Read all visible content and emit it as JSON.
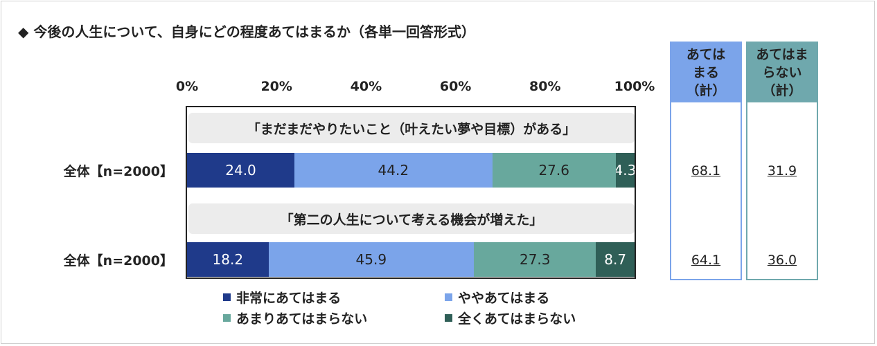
{
  "title": "◆ 今後の人生について、自身にどの程度あてはまるか（各単一回答形式）",
  "colors": {
    "very_applies": "#1f3a8a",
    "somewhat_applies": "#7ba4ea",
    "not_really": "#68a89d",
    "not_at_all": "#2f5f57",
    "applies_total_border": "#7ba4ea",
    "applies_total_header": "#7ba4ea",
    "not_applies_total_border": "#6fa8ad",
    "not_applies_total_header": "#6fa8ad"
  },
  "summary_headers": {
    "applies_total": "あては\nまる\n（計）",
    "not_applies_total": "あてはま\nらない\n（計）"
  },
  "chart_data": {
    "type": "bar",
    "orientation": "horizontal-stacked-100",
    "x_ticks": [
      "0%",
      "20%",
      "40%",
      "60%",
      "80%",
      "100%"
    ],
    "xlim": [
      0,
      100
    ],
    "legend": [
      {
        "key": "very_applies",
        "label": "非常にあてはまる"
      },
      {
        "key": "somewhat_applies",
        "label": "ややあてはまる"
      },
      {
        "key": "not_really",
        "label": "あまりあてはまらない"
      },
      {
        "key": "not_at_all",
        "label": "全くあてはまらない"
      }
    ],
    "rows": [
      {
        "caption": "「まだまだやりたいこと（叶えたい夢や目標）がある」",
        "label": "全体【n=2000】",
        "values": [
          24.0,
          44.2,
          27.6,
          4.3
        ],
        "value_labels": [
          "24.0",
          "44.2",
          "27.6",
          "4.3"
        ],
        "applies_total": "68.1",
        "not_applies_total": "31.9"
      },
      {
        "caption": "「第二の人生について考える機会が増えた」",
        "label": "全体【n=2000】",
        "values": [
          18.2,
          45.9,
          27.3,
          8.7
        ],
        "value_labels": [
          "18.2",
          "45.9",
          "27.3",
          "8.7"
        ],
        "applies_total": "64.1",
        "not_applies_total": "36.0"
      }
    ]
  }
}
